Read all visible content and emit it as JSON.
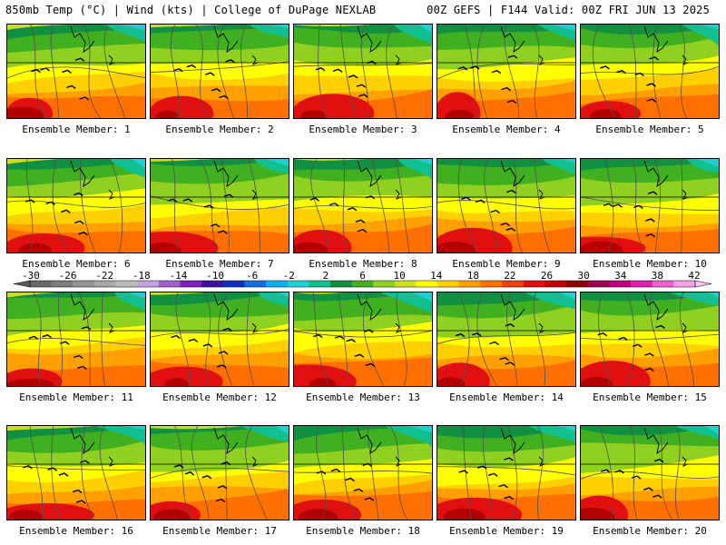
{
  "header": {
    "left": "850mb Temp (°C) | Wind (kts) | College of DuPage NEXLAB",
    "right": "00Z GEFS | F144 Valid: 00Z FRI JUN 13 2025"
  },
  "panels": [
    {
      "label": "Ensemble Member: 1"
    },
    {
      "label": "Ensemble Member: 2"
    },
    {
      "label": "Ensemble Member: 3"
    },
    {
      "label": "Ensemble Member: 4"
    },
    {
      "label": "Ensemble Member: 5"
    },
    {
      "label": "Ensemble Member: 6"
    },
    {
      "label": "Ensemble Member: 7"
    },
    {
      "label": "Ensemble Member: 8"
    },
    {
      "label": "Ensemble Member: 9"
    },
    {
      "label": "Ensemble Member: 10"
    },
    {
      "label": "Ensemble Member: 11"
    },
    {
      "label": "Ensemble Member: 12"
    },
    {
      "label": "Ensemble Member: 13"
    },
    {
      "label": "Ensemble Member: 14"
    },
    {
      "label": "Ensemble Member: 15"
    },
    {
      "label": "Ensemble Member: 16"
    },
    {
      "label": "Ensemble Member: 17"
    },
    {
      "label": "Ensemble Member: 18"
    },
    {
      "label": "Ensemble Member: 19"
    },
    {
      "label": "Ensemble Member: 20"
    }
  ],
  "colorbar": {
    "ticks": [
      "-30",
      "-26",
      "-22",
      "-18",
      "-14",
      "-10",
      "-6",
      "-2",
      "2",
      "6",
      "10",
      "14",
      "18",
      "22",
      "26",
      "30",
      "34",
      "38",
      "42"
    ],
    "colors": [
      "#686868",
      "#7e7e7e",
      "#949494",
      "#a8a8a8",
      "#bcbcbc",
      "#c8a0e0",
      "#a060d0",
      "#8020c0",
      "#4010a0",
      "#1030c0",
      "#1070e0",
      "#10b0f0",
      "#20d0d0",
      "#10c090",
      "#109040",
      "#40b020",
      "#90d020",
      "#d0e020",
      "#ffff00",
      "#ffd000",
      "#ffa000",
      "#ff7000",
      "#f04010",
      "#e01010",
      "#c00000",
      "#900000",
      "#a00050",
      "#c00080",
      "#e020b0",
      "#f060d0",
      "#f8a0e8"
    ]
  }
}
